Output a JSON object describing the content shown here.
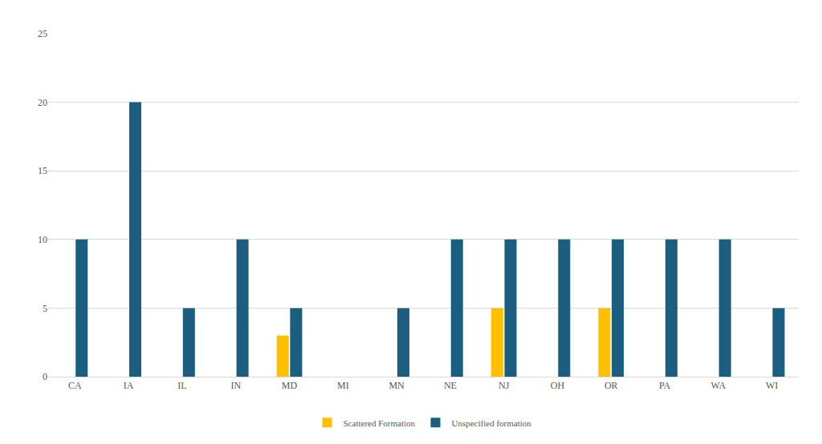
{
  "chart_data": {
    "type": "bar",
    "categories": [
      "CA",
      "IA",
      "IL",
      "IN",
      "MD",
      "MI",
      "MN",
      "NE",
      "NJ",
      "OH",
      "OR",
      "PA",
      "WA",
      "WI"
    ],
    "series": [
      {
        "name": "Scattered Formation",
        "color": "#ffc000",
        "values": [
          0,
          0,
          0,
          0,
          3,
          0,
          0,
          0,
          5,
          0,
          5,
          0,
          0,
          0
        ]
      },
      {
        "name": "Unspecified formation",
        "color": "#1b5e7f",
        "values": [
          10,
          20,
          5,
          10,
          5,
          0,
          5,
          10,
          10,
          10,
          10,
          10,
          10,
          5
        ]
      }
    ],
    "ylim": [
      0,
      25
    ],
    "yticks": [
      0,
      5,
      10,
      15,
      20,
      25
    ],
    "grid": true,
    "legend": "bottom"
  }
}
